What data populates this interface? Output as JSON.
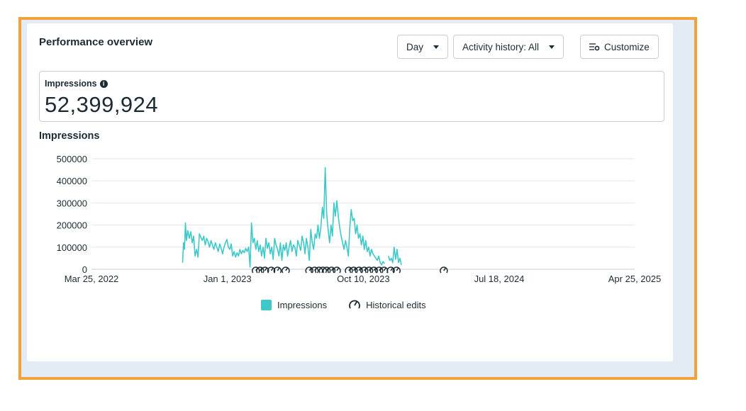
{
  "header": {
    "title": "Performance overview",
    "day_button": "Day",
    "activity_button": "Activity history: All",
    "customize_button": "Customize"
  },
  "metric": {
    "label": "Impressions",
    "value": "52,399,924"
  },
  "chart_data": {
    "type": "line",
    "title": "Impressions",
    "ylim": [
      0,
      500000
    ],
    "y_ticks": [
      0,
      100000,
      200000,
      300000,
      400000,
      500000
    ],
    "y_tick_labels": [
      "0",
      "100000",
      "200000",
      "300000",
      "400000",
      "500000"
    ],
    "x_tick_labels": [
      "Mar 25, 2022",
      "Jan 1, 2023",
      "Oct 10, 2023",
      "Jul 18, 2024",
      "Apr 25, 2025"
    ],
    "x_ticks": [
      "2022-03-25",
      "2023-01-01",
      "2023-10-10",
      "2024-07-18",
      "2025-04-25"
    ],
    "xlim": [
      "2022-03-25",
      "2025-04-25"
    ],
    "grid": true,
    "legend_position": "bottom",
    "series": [
      {
        "name": "Impressions",
        "color": "#3ec9c9",
        "points": [
          [
            "2022-09-30",
            30000
          ],
          [
            "2022-10-02",
            120000
          ],
          [
            "2022-10-04",
            90000
          ],
          [
            "2022-10-06",
            210000
          ],
          [
            "2022-10-08",
            130000
          ],
          [
            "2022-10-11",
            175000
          ],
          [
            "2022-10-14",
            140000
          ],
          [
            "2022-10-17",
            170000
          ],
          [
            "2022-10-20",
            120000
          ],
          [
            "2022-10-23",
            150000
          ],
          [
            "2022-10-26",
            60000
          ],
          [
            "2022-10-29",
            90000
          ],
          [
            "2022-11-01",
            55000
          ],
          [
            "2022-11-04",
            160000
          ],
          [
            "2022-11-07",
            145000
          ],
          [
            "2022-11-10",
            130000
          ],
          [
            "2022-11-13",
            150000
          ],
          [
            "2022-11-16",
            110000
          ],
          [
            "2022-11-19",
            140000
          ],
          [
            "2022-11-22",
            125000
          ],
          [
            "2022-11-25",
            100000
          ],
          [
            "2022-11-28",
            130000
          ],
          [
            "2022-12-01",
            110000
          ],
          [
            "2022-12-04",
            90000
          ],
          [
            "2022-12-07",
            120000
          ],
          [
            "2022-12-10",
            100000
          ],
          [
            "2022-12-13",
            80000
          ],
          [
            "2022-12-16",
            115000
          ],
          [
            "2022-12-19",
            95000
          ],
          [
            "2022-12-22",
            70000
          ],
          [
            "2022-12-25",
            100000
          ],
          [
            "2022-12-28",
            120000
          ],
          [
            "2022-12-31",
            135000
          ],
          [
            "2023-01-03",
            100000
          ],
          [
            "2023-01-06",
            90000
          ],
          [
            "2023-01-09",
            115000
          ],
          [
            "2023-01-12",
            60000
          ],
          [
            "2023-01-15",
            80000
          ],
          [
            "2023-01-18",
            55000
          ],
          [
            "2023-01-21",
            75000
          ],
          [
            "2023-01-24",
            60000
          ],
          [
            "2023-01-27",
            90000
          ],
          [
            "2023-01-30",
            70000
          ],
          [
            "2023-02-02",
            85000
          ],
          [
            "2023-02-05",
            75000
          ],
          [
            "2023-02-08",
            95000
          ],
          [
            "2023-02-11",
            80000
          ],
          [
            "2023-02-14",
            100000
          ],
          [
            "2023-02-17",
            10000
          ],
          [
            "2023-02-20",
            210000
          ],
          [
            "2023-02-23",
            120000
          ],
          [
            "2023-02-26",
            140000
          ],
          [
            "2023-03-01",
            90000
          ],
          [
            "2023-03-04",
            130000
          ],
          [
            "2023-03-07",
            80000
          ],
          [
            "2023-03-10",
            110000
          ],
          [
            "2023-03-13",
            60000
          ],
          [
            "2023-03-16",
            100000
          ],
          [
            "2023-03-19",
            50000
          ],
          [
            "2023-03-22",
            140000
          ],
          [
            "2023-03-25",
            95000
          ],
          [
            "2023-03-28",
            120000
          ],
          [
            "2023-03-31",
            70000
          ],
          [
            "2023-04-03",
            100000
          ],
          [
            "2023-04-06",
            45000
          ],
          [
            "2023-04-09",
            140000
          ],
          [
            "2023-04-12",
            110000
          ],
          [
            "2023-04-15",
            90000
          ],
          [
            "2023-04-18",
            60000
          ],
          [
            "2023-04-21",
            120000
          ],
          [
            "2023-04-24",
            40000
          ],
          [
            "2023-04-27",
            110000
          ],
          [
            "2023-04-30",
            85000
          ],
          [
            "2023-05-03",
            120000
          ],
          [
            "2023-05-06",
            60000
          ],
          [
            "2023-05-09",
            100000
          ],
          [
            "2023-05-12",
            130000
          ],
          [
            "2023-05-15",
            80000
          ],
          [
            "2023-05-18",
            110000
          ],
          [
            "2023-05-21",
            100000
          ],
          [
            "2023-05-24",
            60000
          ],
          [
            "2023-05-27",
            130000
          ],
          [
            "2023-05-30",
            110000
          ],
          [
            "2023-06-02",
            85000
          ],
          [
            "2023-06-05",
            150000
          ],
          [
            "2023-06-08",
            120000
          ],
          [
            "2023-06-11",
            70000
          ],
          [
            "2023-06-14",
            140000
          ],
          [
            "2023-06-17",
            100000
          ],
          [
            "2023-06-20",
            40000
          ],
          [
            "2023-06-23",
            180000
          ],
          [
            "2023-06-26",
            120000
          ],
          [
            "2023-06-29",
            90000
          ],
          [
            "2023-07-02",
            160000
          ],
          [
            "2023-07-05",
            140000
          ],
          [
            "2023-07-08",
            200000
          ],
          [
            "2023-07-11",
            140000
          ],
          [
            "2023-07-14",
            190000
          ],
          [
            "2023-07-17",
            280000
          ],
          [
            "2023-07-20",
            230000
          ],
          [
            "2023-07-23",
            460000
          ],
          [
            "2023-07-26",
            250000
          ],
          [
            "2023-07-29",
            180000
          ],
          [
            "2023-08-01",
            120000
          ],
          [
            "2023-08-04",
            200000
          ],
          [
            "2023-08-07",
            150000
          ],
          [
            "2023-08-10",
            300000
          ],
          [
            "2023-08-13",
            240000
          ],
          [
            "2023-08-16",
            310000
          ],
          [
            "2023-08-19",
            240000
          ],
          [
            "2023-08-22",
            190000
          ],
          [
            "2023-08-25",
            150000
          ],
          [
            "2023-08-28",
            120000
          ],
          [
            "2023-08-31",
            90000
          ],
          [
            "2023-09-03",
            130000
          ],
          [
            "2023-09-06",
            100000
          ],
          [
            "2023-09-09",
            60000
          ],
          [
            "2023-09-12",
            190000
          ],
          [
            "2023-09-15",
            270000
          ],
          [
            "2023-09-18",
            220000
          ],
          [
            "2023-09-21",
            230000
          ],
          [
            "2023-09-24",
            160000
          ],
          [
            "2023-09-27",
            200000
          ],
          [
            "2023-09-30",
            140000
          ],
          [
            "2023-10-03",
            160000
          ],
          [
            "2023-10-06",
            110000
          ],
          [
            "2023-10-09",
            150000
          ],
          [
            "2023-10-12",
            90000
          ],
          [
            "2023-10-15",
            130000
          ],
          [
            "2023-10-18",
            80000
          ],
          [
            "2023-10-21",
            100000
          ],
          [
            "2023-10-24",
            60000
          ],
          [
            "2023-10-27",
            90000
          ],
          [
            "2023-10-30",
            70000
          ],
          [
            "2023-11-02",
            60000
          ],
          [
            "2023-11-05",
            50000
          ],
          [
            "2023-11-08",
            40000
          ],
          [
            "2023-11-11",
            60000
          ],
          [
            "2023-11-14",
            30000
          ],
          [
            "2023-11-17",
            20000
          ],
          [
            "2023-11-20",
            35000
          ],
          [
            "2023-11-23",
            25000
          ]
        ],
        "points_b": [
          [
            "2023-12-01",
            60000
          ],
          [
            "2023-12-04",
            40000
          ],
          [
            "2023-12-07",
            50000
          ],
          [
            "2023-12-10",
            30000
          ],
          [
            "2023-12-13",
            100000
          ],
          [
            "2023-12-16",
            45000
          ],
          [
            "2023-12-19",
            90000
          ],
          [
            "2023-12-22",
            30000
          ],
          [
            "2023-12-25",
            50000
          ],
          [
            "2023-12-28",
            20000
          ]
        ]
      }
    ],
    "edit_markers_label": "Historical edits",
    "edit_markers": [
      "2023-03-01",
      "2023-03-10",
      "2023-03-20",
      "2023-04-02",
      "2023-04-15",
      "2023-05-02",
      "2023-06-20",
      "2023-07-01",
      "2023-07-10",
      "2023-07-18",
      "2023-07-26",
      "2023-08-05",
      "2023-08-16",
      "2023-09-10",
      "2023-09-20",
      "2023-10-01",
      "2023-10-12",
      "2023-10-22",
      "2023-11-01",
      "2023-11-12",
      "2023-11-22",
      "2023-12-06",
      "2023-12-18",
      "2024-03-25"
    ]
  }
}
